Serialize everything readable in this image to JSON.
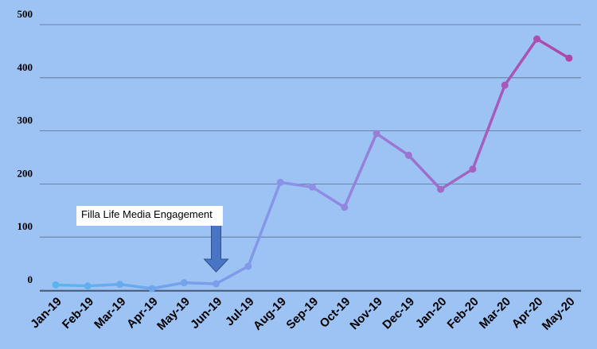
{
  "chart_data": {
    "type": "line",
    "title": "",
    "xlabel": "",
    "ylabel": "",
    "categories": [
      "Jan-19",
      "Feb-19",
      "Mar-19",
      "Apr-19",
      "May-19",
      "Jun-19",
      "Jul-19",
      "Aug-19",
      "Sep-19",
      "Oct-19",
      "Nov-19",
      "Dec-19",
      "Jan-20",
      "Feb-20",
      "Mar-20",
      "Apr-20",
      "May-20"
    ],
    "values": [
      10,
      8,
      11,
      3,
      14,
      12,
      45,
      203,
      194,
      156,
      295,
      254,
      190,
      228,
      386,
      473,
      437
    ],
    "ylim": [
      -20,
      520
    ],
    "yticks": [
      0,
      100,
      200,
      300,
      400,
      500
    ],
    "ytick_labels": [
      "0",
      "100",
      "200",
      "300",
      "400",
      "500"
    ],
    "grid": true,
    "line_colors": [
      "#5bb4f2",
      "#8f8fe6",
      "#b046a8"
    ],
    "annotation": {
      "text": "Filla Life Media Engagement",
      "target_category": "Jun-19",
      "arrow_color": "#4a74c4"
    }
  }
}
